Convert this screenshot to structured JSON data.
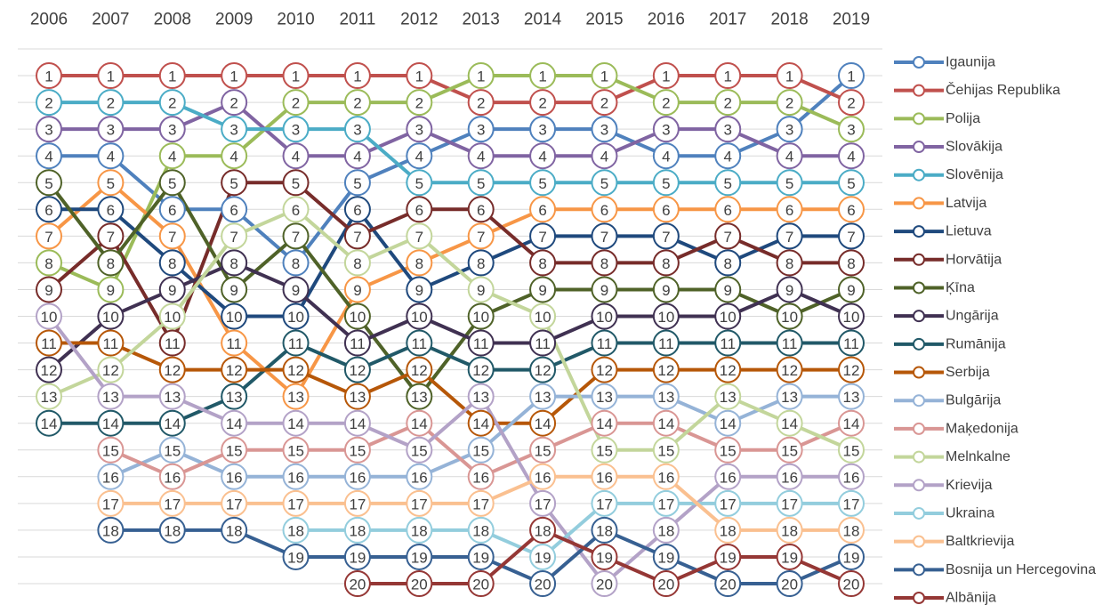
{
  "chart_data": {
    "type": "line",
    "inverted": true,
    "grid": true,
    "legend": "right",
    "categories": [
      "2006",
      "2007",
      "2008",
      "2009",
      "2010",
      "2011",
      "2012",
      "2013",
      "2014",
      "2015",
      "2016",
      "2017",
      "2018",
      "2019"
    ],
    "ylim": [
      0,
      20
    ],
    "yticks": [
      0,
      1,
      2,
      3,
      4,
      5,
      6,
      7,
      8,
      9,
      10,
      11,
      12,
      13,
      14,
      15,
      16,
      17,
      18,
      19,
      20
    ],
    "series": [
      {
        "name": "Igaunija",
        "color": "#4f81bd",
        "values": [
          4,
          4,
          6,
          6,
          8,
          5,
          4,
          3,
          3,
          3,
          4,
          4,
          3,
          1
        ]
      },
      {
        "name": "Čehijas Republika",
        "color": "#c0504d",
        "values": [
          1,
          1,
          1,
          1,
          1,
          1,
          1,
          2,
          2,
          2,
          1,
          1,
          1,
          2
        ]
      },
      {
        "name": "Polija",
        "color": "#9bbb59",
        "values": [
          8,
          9,
          4,
          4,
          2,
          2,
          2,
          1,
          1,
          1,
          2,
          2,
          2,
          3
        ]
      },
      {
        "name": "Slovākija",
        "color": "#8064a2",
        "values": [
          3,
          3,
          3,
          2,
          4,
          4,
          3,
          4,
          4,
          4,
          3,
          3,
          4,
          4
        ]
      },
      {
        "name": "Slovēnija",
        "color": "#4bacc6",
        "values": [
          2,
          2,
          2,
          3,
          3,
          3,
          5,
          5,
          5,
          5,
          5,
          5,
          5,
          5
        ]
      },
      {
        "name": "Latvija",
        "color": "#f79646",
        "values": [
          7,
          5,
          7,
          11,
          13,
          9,
          8,
          7,
          6,
          6,
          6,
          6,
          6,
          6
        ]
      },
      {
        "name": "Lietuva",
        "color": "#1f497d",
        "values": [
          6,
          6,
          8,
          10,
          10,
          6,
          9,
          8,
          7,
          7,
          7,
          8,
          7,
          7
        ]
      },
      {
        "name": "Horvātija",
        "color": "#772c2a",
        "values": [
          9,
          7,
          11,
          5,
          5,
          7,
          6,
          6,
          8,
          8,
          8,
          7,
          8,
          8
        ]
      },
      {
        "name": "Ķīna",
        "color": "#4f6228",
        "values": [
          5,
          8,
          5,
          9,
          7,
          10,
          13,
          10,
          9,
          9,
          9,
          9,
          10,
          9
        ]
      },
      {
        "name": "Ungārija",
        "color": "#403152",
        "values": [
          12,
          10,
          9,
          8,
          9,
          11,
          10,
          11,
          11,
          10,
          10,
          10,
          9,
          10
        ]
      },
      {
        "name": "Rumānija",
        "color": "#215968",
        "values": [
          14,
          14,
          14,
          13,
          11,
          12,
          11,
          12,
          12,
          11,
          11,
          11,
          11,
          11
        ]
      },
      {
        "name": "Serbija",
        "color": "#b65708",
        "values": [
          11,
          11,
          12,
          12,
          12,
          13,
          12,
          14,
          14,
          12,
          12,
          12,
          12,
          12
        ]
      },
      {
        "name": "Bulgārija",
        "color": "#95b3d7",
        "values": [
          null,
          16,
          15,
          16,
          16,
          16,
          16,
          15,
          13,
          13,
          13,
          14,
          13,
          13
        ]
      },
      {
        "name": "Maķedonija",
        "color": "#d99694",
        "values": [
          null,
          15,
          16,
          15,
          15,
          15,
          14,
          16,
          15,
          14,
          14,
          15,
          15,
          14
        ]
      },
      {
        "name": "Melnkalne",
        "color": "#c3d69b",
        "values": [
          13,
          12,
          10,
          7,
          6,
          8,
          7,
          9,
          10,
          15,
          15,
          13,
          14,
          15
        ]
      },
      {
        "name": "Krievija",
        "color": "#b3a2c7",
        "values": [
          10,
          13,
          13,
          14,
          14,
          14,
          15,
          13,
          17,
          20,
          18,
          16,
          16,
          16
        ]
      },
      {
        "name": "Ukraina",
        "color": "#93cddd",
        "values": [
          null,
          null,
          null,
          null,
          18,
          18,
          18,
          18,
          19,
          17,
          17,
          17,
          17,
          17
        ]
      },
      {
        "name": "Baltkrievija",
        "color": "#fac090",
        "values": [
          null,
          17,
          17,
          17,
          17,
          17,
          17,
          17,
          16,
          16,
          16,
          18,
          18,
          18
        ]
      },
      {
        "name": "Bosnija un Hercegovina",
        "color": "#376092",
        "values": [
          null,
          18,
          18,
          18,
          19,
          19,
          19,
          19,
          20,
          18,
          19,
          20,
          20,
          19
        ]
      },
      {
        "name": "Albānija",
        "color": "#953735",
        "values": [
          null,
          null,
          null,
          null,
          null,
          20,
          20,
          20,
          18,
          19,
          20,
          19,
          19,
          20
        ]
      }
    ]
  }
}
